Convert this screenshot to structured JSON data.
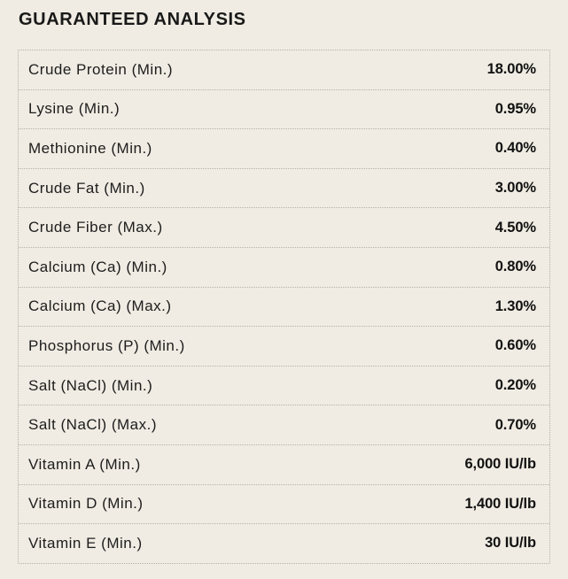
{
  "page": {
    "background_color": "#f0ece3",
    "text_color": "#1d1d1d",
    "border_color": "#b4b1a8"
  },
  "section": {
    "title": "GUARANTEED ANALYSIS"
  },
  "analysis_table": {
    "rows": [
      {
        "label": "Crude Protein (Min.)",
        "value": "18.00%"
      },
      {
        "label": "Lysine (Min.)",
        "value": "0.95%"
      },
      {
        "label": "Methionine (Min.)",
        "value": "0.40%"
      },
      {
        "label": "Crude Fat (Min.)",
        "value": "3.00%"
      },
      {
        "label": "Crude Fiber (Max.)",
        "value": "4.50%"
      },
      {
        "label": "Calcium (Ca) (Min.)",
        "value": "0.80%"
      },
      {
        "label": "Calcium (Ca) (Max.)",
        "value": "1.30%"
      },
      {
        "label": "Phosphorus (P) (Min.)",
        "value": "0.60%"
      },
      {
        "label": "Salt (NaCl) (Min.)",
        "value": "0.20%"
      },
      {
        "label": "Salt (NaCl) (Max.)",
        "value": "0.70%"
      },
      {
        "label": "Vitamin A (Min.)",
        "value": "6,000 IU/lb"
      },
      {
        "label": "Vitamin D (Min.)",
        "value": "1,400 IU/lb"
      },
      {
        "label": "Vitamin E (Min.)",
        "value": "30 IU/lb"
      }
    ]
  }
}
